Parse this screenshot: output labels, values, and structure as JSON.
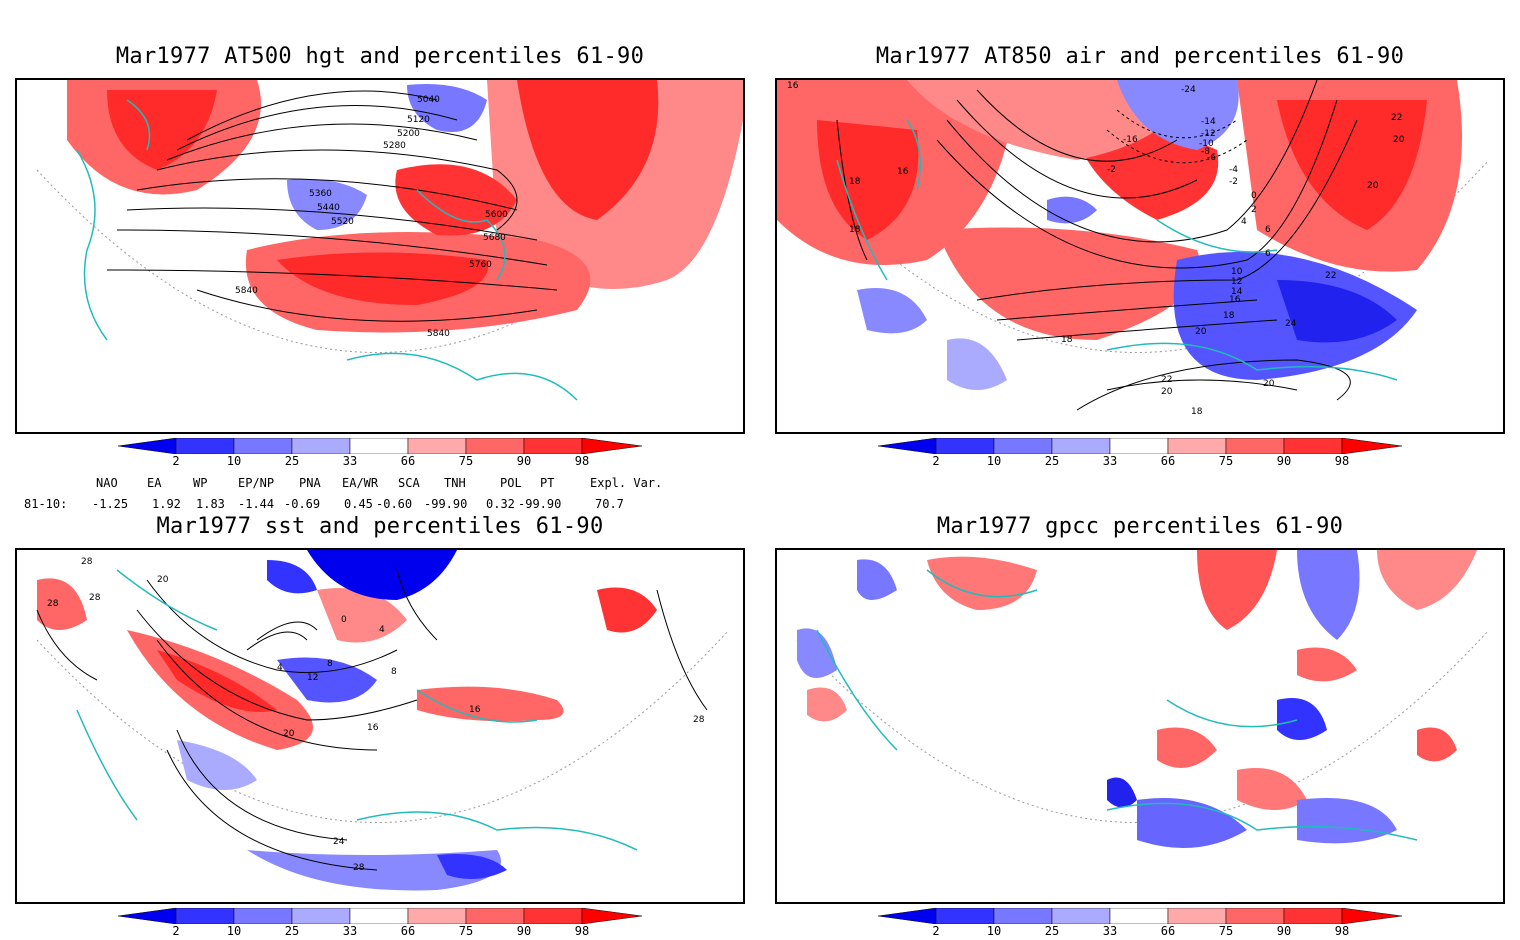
{
  "panels": [
    {
      "title": "Mar1977 AT500 hgt and percentiles 61-90",
      "contour_labels": [
        "5040",
        "5120",
        "5200",
        "5280",
        "5360",
        "5440",
        "5520",
        "5600",
        "5680",
        "5760",
        "5840",
        "5840"
      ]
    },
    {
      "title": "Mar1977 AT850 air and percentiles 61-90",
      "contour_labels": [
        "-24",
        "-14",
        "-12",
        "-10",
        "-8",
        "-6",
        "-4",
        "-2",
        "0",
        "2",
        "4",
        "6",
        "10",
        "12",
        "14",
        "16",
        "18",
        "20",
        "22",
        "24",
        "-16",
        "16",
        "18",
        "16",
        "20",
        "22",
        "20",
        "18",
        "22",
        "20",
        "18",
        "20",
        "18",
        "-2",
        "6"
      ]
    },
    {
      "title": "Mar1977 sst and percentiles 61-90",
      "contour_labels": [
        "28",
        "28",
        "28",
        "20",
        "12",
        "4",
        "8",
        "16",
        "20",
        "24",
        "28",
        "0",
        "4",
        "16",
        "28",
        "8"
      ]
    },
    {
      "title": "Mar1977 gpcc percentiles 61-90",
      "contour_labels": []
    }
  ],
  "colorbar": {
    "ticks": [
      "2",
      "10",
      "25",
      "33",
      "66",
      "75",
      "90",
      "98"
    ],
    "colors": [
      "#0000ee",
      "#3333ff",
      "#7777ff",
      "#aaaaff",
      "#ffffff",
      "#ffaaaa",
      "#ff6666",
      "#ff3333",
      "#ff0000"
    ]
  },
  "indices": {
    "headers": [
      "NAO",
      "EA",
      "WP",
      "EP/NP",
      "PNA",
      "EA/WR",
      "SCA",
      "TNH",
      "POL",
      "PT",
      "Expl. Var."
    ],
    "row_label": "81-10:",
    "values": [
      "-1.25",
      "1.92",
      "1.83",
      "-1.44",
      "-0.69",
      "0.45",
      "-0.60",
      "-99.90",
      "0.32",
      "-99.90",
      "70.7"
    ]
  }
}
